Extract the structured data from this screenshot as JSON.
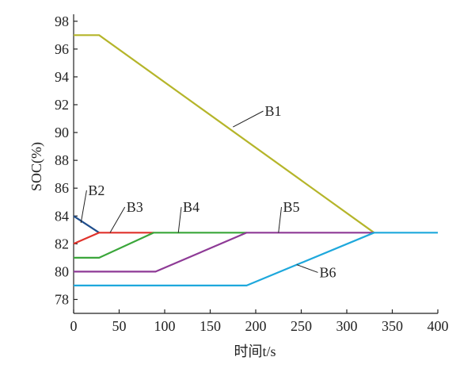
{
  "chart_data": {
    "type": "line",
    "xlabel": "时间t/s",
    "ylabel": "SOC(%)",
    "xlim": [
      0,
      400
    ],
    "ylim": [
      77,
      98.5
    ],
    "xticks": [
      0,
      50,
      100,
      150,
      200,
      250,
      300,
      350,
      400
    ],
    "yticks": [
      78,
      80,
      82,
      84,
      86,
      88,
      90,
      92,
      94,
      96,
      98
    ],
    "grid": false,
    "series": [
      {
        "name": "B1",
        "color": "#b5b52a",
        "x": [
          0,
          28,
          330
        ],
        "y": [
          97,
          97,
          82.8
        ]
      },
      {
        "name": "B2",
        "color": "#1f4e8c",
        "x": [
          0,
          28
        ],
        "y": [
          84,
          82.8
        ]
      },
      {
        "name": "B3",
        "color": "#e0322b",
        "x": [
          0,
          28,
          88
        ],
        "y": [
          82,
          82.8,
          82.8
        ]
      },
      {
        "name": "B4",
        "color": "#3aa63a",
        "x": [
          0,
          28,
          88,
          190
        ],
        "y": [
          81,
          81,
          82.8,
          82.8
        ]
      },
      {
        "name": "B5",
        "color": "#8e3a96",
        "x": [
          0,
          90,
          190,
          330
        ],
        "y": [
          80,
          80,
          82.8,
          82.8
        ]
      },
      {
        "name": "B6",
        "color": "#1ea8dc",
        "x": [
          0,
          190,
          330,
          400
        ],
        "y": [
          79,
          79,
          82.8,
          82.8
        ]
      }
    ],
    "labels": [
      {
        "text": "B1",
        "series": "B1",
        "at": [
          210,
          91.2
        ],
        "point": [
          175,
          90.4
        ]
      },
      {
        "text": "B2",
        "series": "B2",
        "at": [
          16,
          85.5
        ],
        "point": [
          8,
          83.5
        ]
      },
      {
        "text": "B3",
        "series": "B3",
        "at": [
          58,
          84.3
        ],
        "point": [
          40,
          82.8
        ]
      },
      {
        "text": "B4",
        "series": "B4",
        "at": [
          120,
          84.3
        ],
        "point": [
          115,
          82.8
        ]
      },
      {
        "text": "B5",
        "series": "B5",
        "at": [
          230,
          84.3
        ],
        "point": [
          225,
          82.8
        ]
      },
      {
        "text": "B6",
        "series": "B6",
        "at": [
          270,
          79.6
        ],
        "point": [
          245,
          80.5
        ]
      }
    ]
  }
}
